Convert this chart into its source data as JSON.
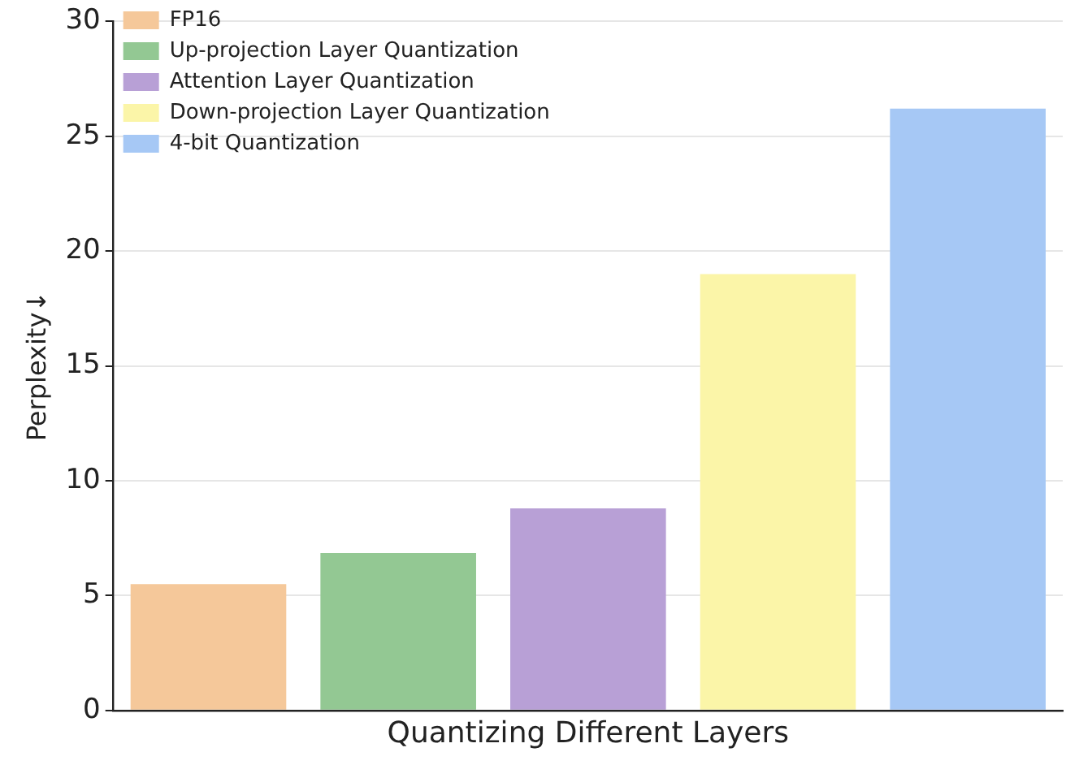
{
  "chart_data": {
    "type": "bar",
    "xlabel": "Quantizing Different Layers",
    "ylabel": "Perplexity↓",
    "categories": [
      null,
      null,
      null,
      null,
      null
    ],
    "series": [
      {
        "name": "FP16",
        "color": "#f5c89a",
        "values": [
          5.5,
          null,
          null,
          null,
          null
        ]
      },
      {
        "name": "Up-projection Layer Quantization",
        "color": "#93c893",
        "values": [
          null,
          6.85,
          null,
          null,
          null
        ]
      },
      {
        "name": "Attention Layer Quantization",
        "color": "#b8a0d6",
        "values": [
          null,
          null,
          8.8,
          null,
          null
        ]
      },
      {
        "name": "Down-projection Layer Quantization",
        "color": "#fbf5a8",
        "values": [
          null,
          null,
          null,
          19.0,
          null
        ]
      },
      {
        "name": "4-bit Quantization",
        "color": "#a6c8f5",
        "values": [
          null,
          null,
          null,
          null,
          26.2
        ]
      }
    ],
    "ylim": [
      0,
      30
    ],
    "yticks": [
      0,
      5,
      10,
      15,
      20,
      25,
      30
    ],
    "grid": "y",
    "legend": "top left",
    "tick_labels": "y"
  }
}
